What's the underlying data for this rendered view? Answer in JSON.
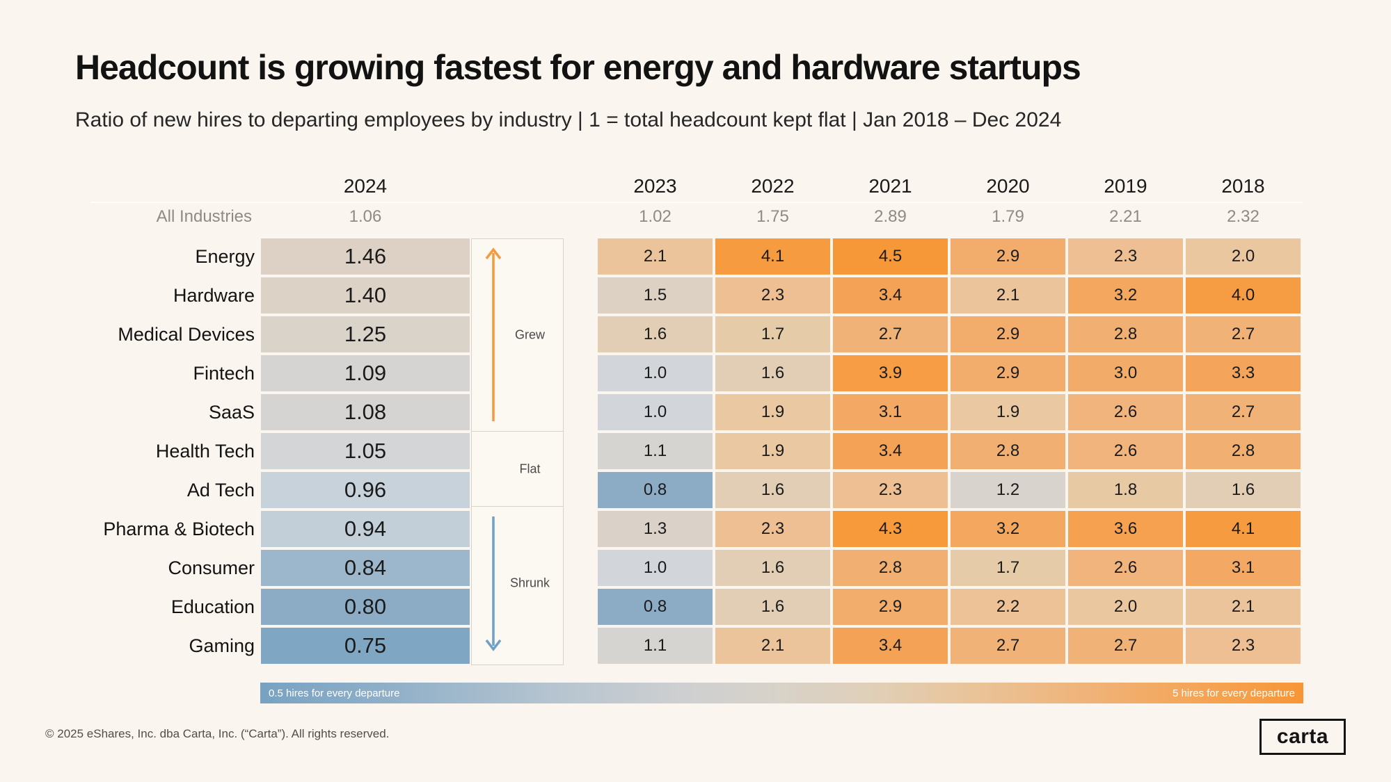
{
  "page": {
    "background": "#FAF5EE"
  },
  "chart_data": {
    "type": "heatmap",
    "title": "Headcount is growing fastest for energy and hardware startups",
    "subtitle": "Ratio of new hires to departing employees by industry |  1 = total headcount kept flat |  Jan 2018 – Dec 2024",
    "columns": [
      "2024",
      "2023",
      "2022",
      "2021",
      "2020",
      "2019",
      "2018"
    ],
    "all_industries_label": "All Industries",
    "all_industries": [
      1.06,
      1.02,
      1.75,
      2.89,
      1.79,
      2.21,
      2.32
    ],
    "rows": [
      {
        "industry": "Energy",
        "values": [
          1.46,
          2.1,
          4.1,
          4.5,
          2.9,
          2.3,
          2.0
        ]
      },
      {
        "industry": "Hardware",
        "values": [
          1.4,
          1.5,
          2.3,
          3.4,
          2.1,
          3.2,
          4.0
        ]
      },
      {
        "industry": "Medical Devices",
        "values": [
          1.25,
          1.6,
          1.7,
          2.7,
          2.9,
          2.8,
          2.7
        ]
      },
      {
        "industry": "Fintech",
        "values": [
          1.09,
          1.0,
          1.6,
          3.9,
          2.9,
          3.0,
          3.3
        ]
      },
      {
        "industry": "SaaS",
        "values": [
          1.08,
          1.0,
          1.9,
          3.1,
          1.9,
          2.6,
          2.7
        ]
      },
      {
        "industry": "Health Tech",
        "values": [
          1.05,
          1.1,
          1.9,
          3.4,
          2.8,
          2.6,
          2.8
        ]
      },
      {
        "industry": "Ad Tech",
        "values": [
          0.96,
          0.8,
          1.6,
          2.3,
          1.2,
          1.8,
          1.6
        ]
      },
      {
        "industry": "Pharma & Biotech",
        "values": [
          0.94,
          1.3,
          2.3,
          4.3,
          3.2,
          3.6,
          4.1
        ]
      },
      {
        "industry": "Consumer",
        "values": [
          0.84,
          1.0,
          1.6,
          2.8,
          1.7,
          2.6,
          3.1
        ]
      },
      {
        "industry": "Education",
        "values": [
          0.8,
          0.8,
          1.6,
          2.9,
          2.2,
          2.0,
          2.1
        ]
      },
      {
        "industry": "Gaming",
        "values": [
          0.75,
          1.1,
          2.1,
          3.4,
          2.7,
          2.7,
          2.3
        ]
      }
    ],
    "groups": [
      {
        "label": "Grew",
        "span": [
          0,
          4
        ],
        "arrow": "up",
        "arrow_color": "#F49B3F"
      },
      {
        "label": "Flat",
        "span": [
          5,
          6
        ],
        "arrow": null,
        "arrow_color": null
      },
      {
        "label": "Shrunk",
        "span": [
          7,
          10
        ],
        "arrow": "down",
        "arrow_color": "#6FA0C6"
      }
    ],
    "colorscale": {
      "stops": [
        [
          0.5,
          "#6E9CBE"
        ],
        [
          0.75,
          "#7FA6C3"
        ],
        [
          0.8,
          "#8CACC6"
        ],
        [
          0.9,
          "#B4C5D3"
        ],
        [
          0.95,
          "#C6D1DA"
        ],
        [
          1.0,
          "#D2D6DA"
        ],
        [
          1.1,
          "#D6D4D1"
        ],
        [
          1.3,
          "#DAD2C8"
        ],
        [
          1.5,
          "#DDD1C3"
        ],
        [
          1.7,
          "#E5CBA7"
        ],
        [
          2.0,
          "#EBC79F"
        ],
        [
          2.3,
          "#EEBF92"
        ],
        [
          2.6,
          "#F0B47C"
        ],
        [
          3.0,
          "#F2AB68"
        ],
        [
          3.4,
          "#F4A356"
        ],
        [
          4.0,
          "#F69C42"
        ],
        [
          4.5,
          "#F79838"
        ],
        [
          5.0,
          "#F8952F"
        ]
      ]
    },
    "legend": {
      "min_label": "0.5 hires for every departure",
      "max_label": "5 hires for every departure"
    },
    "value_range": [
      0.5,
      5
    ],
    "grid": false
  },
  "footer": {
    "copyright": "© 2025 eShares, Inc. dba Carta, Inc. (“Carta”). All rights reserved.",
    "logo_text": "carta"
  }
}
